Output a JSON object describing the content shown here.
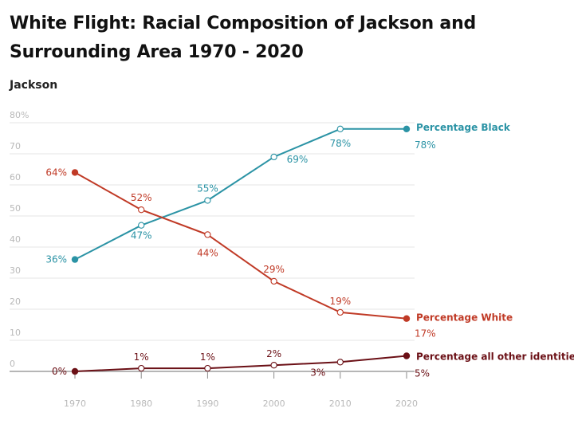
{
  "chart_data": {
    "type": "line",
    "title": "White Flight: Racial Composition of Jackson and Surrounding Area 1970 - 2020",
    "subtitle": "Jackson",
    "x": [
      1970,
      1980,
      1990,
      2000,
      2010,
      2020
    ],
    "x_tick_labels": [
      "1970",
      "1980",
      "1990",
      "2000",
      "2010",
      "2020"
    ],
    "y_tick_labels": [
      "0",
      "10",
      "20",
      "30",
      "40",
      "50",
      "60",
      "70",
      "80%"
    ],
    "ylim": [
      0,
      80
    ],
    "grid": true,
    "series": [
      {
        "name": "Percentage Black",
        "color": "#2b93a5",
        "values": [
          36,
          47,
          55,
          69,
          78,
          78
        ],
        "labels": [
          "36%",
          "47%",
          "55%",
          "69%",
          "78%",
          "78%"
        ]
      },
      {
        "name": "Percentage White",
        "color": "#c03a26",
        "values": [
          64,
          52,
          44,
          29,
          19,
          17
        ],
        "labels": [
          "64%",
          "52%",
          "44%",
          "29%",
          "19%",
          "17%"
        ]
      },
      {
        "name": "Percentage all other identities",
        "color": "#6b1016",
        "values": [
          0,
          1,
          1,
          2,
          3,
          5
        ],
        "labels": [
          "0%",
          "1%",
          "1%",
          "2%",
          "3%",
          "5%"
        ]
      }
    ]
  }
}
